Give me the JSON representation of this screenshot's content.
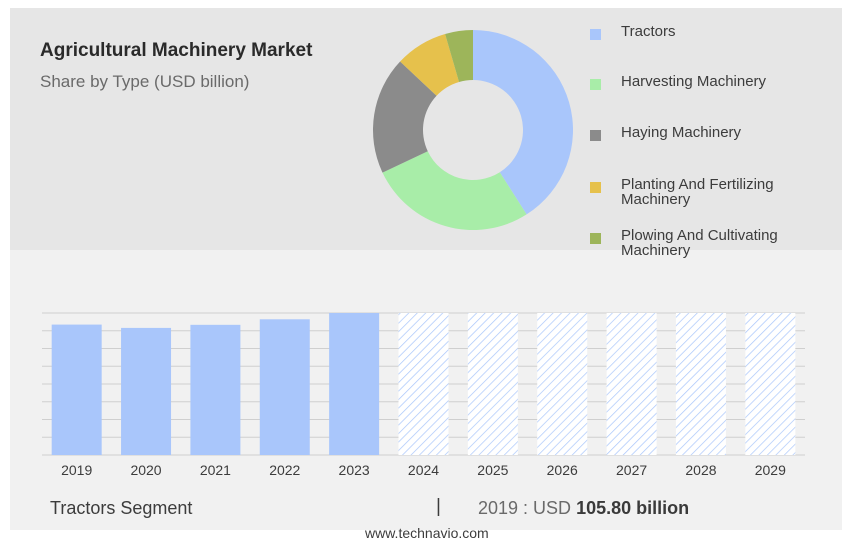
{
  "header": {
    "title": "Agricultural Machinery Market",
    "subtitle": "Share by Type (USD billion)"
  },
  "legend": [
    {
      "label": "Tractors",
      "color": "#a9c6fb"
    },
    {
      "label": "Harvesting Machinery",
      "color": "#a8eda8"
    },
    {
      "label": "Haying Machinery",
      "color": "#8b8b8b"
    },
    {
      "label": "Planting And Fertilizing Machinery",
      "color": "#e6c14c"
    },
    {
      "label": "Plowing And Cultivating Machinery",
      "color": "#9db55a"
    }
  ],
  "chart_data": [
    {
      "type": "pie",
      "variant": "donut",
      "labels": [
        "Tractors",
        "Harvesting Machinery",
        "Haying Machinery",
        "Planting And Fertilizing Machinery",
        "Plowing And Cultivating Machinery"
      ],
      "values": [
        41,
        27,
        19,
        8.5,
        4.5
      ],
      "colors": [
        "#a9c6fb",
        "#a8eda8",
        "#8b8b8b",
        "#e6c14c",
        "#9db55a"
      ]
    },
    {
      "type": "bar",
      "categories": [
        "2019",
        "2020",
        "2021",
        "2022",
        "2023",
        "2024",
        "2025",
        "2026",
        "2027",
        "2028",
        "2029"
      ],
      "values": [
        105.8,
        103.1,
        105.6,
        110.1,
        115.2,
        115.2,
        115.2,
        115.2,
        115.2,
        115.2,
        115.2
      ],
      "forecast_from": "2024",
      "bar_color": "#a9c6fb",
      "forecast_style": "hatched",
      "grid": true,
      "ylim": [
        0,
        115.2
      ]
    }
  ],
  "footer": {
    "segment_label": "Tractors Segment",
    "separator": "|",
    "value_prefix": "2019 : USD",
    "value_bold": "105.80 billion",
    "source": "www.technavio.com"
  }
}
